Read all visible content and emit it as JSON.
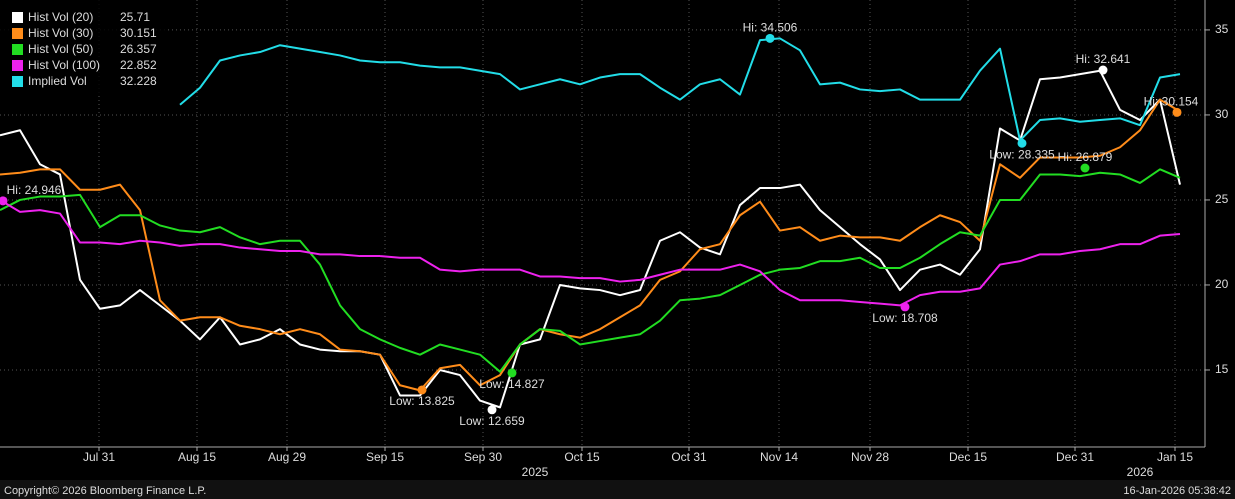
{
  "chart_data": {
    "type": "line",
    "xlim": [
      0,
      60.25
    ],
    "ylim": [
      10.47,
      36.76
    ],
    "yticks": [
      15,
      20,
      25,
      30,
      35
    ],
    "xticks": [
      {
        "value": 4.95,
        "label": "Jul 31"
      },
      {
        "value": 9.85,
        "label": "Aug 15"
      },
      {
        "value": 14.35,
        "label": "Aug 29"
      },
      {
        "value": 19.25,
        "label": "Sep 15"
      },
      {
        "value": 24.15,
        "label": "Sep 30"
      },
      {
        "value": 29.1,
        "label": "Oct 15"
      },
      {
        "value": 34.45,
        "label": "Oct 31"
      },
      {
        "value": 38.95,
        "label": "Nov 14"
      },
      {
        "value": 43.5,
        "label": "Nov 28"
      },
      {
        "value": 48.4,
        "label": "Dec 15"
      },
      {
        "value": 53.75,
        "label": "Dec 31"
      },
      {
        "value": 58.75,
        "label": "Jan 15"
      }
    ],
    "year_ticks": [
      {
        "value": 26.75,
        "label": "2025"
      },
      {
        "value": 57,
        "label": "2026"
      }
    ],
    "grid": true,
    "series": [
      {
        "name": "Hist Vol (20)",
        "last": 25.71,
        "color": "#ffffff",
        "values": [
          28.8,
          29.1,
          27.1,
          26.5,
          20.3,
          18.6,
          18.8,
          19.7,
          18.8,
          17.9,
          16.8,
          18.1,
          16.5,
          16.8,
          17.4,
          16.5,
          16.2,
          16.1,
          16.1,
          15.9,
          13.5,
          13.5,
          15.0,
          14.7,
          13.2,
          12.8,
          16.5,
          16.8,
          20.0,
          19.8,
          19.7,
          19.4,
          19.7,
          22.6,
          23.1,
          22.2,
          21.8,
          24.7,
          25.7,
          25.7,
          25.9,
          24.4,
          23.4,
          22.4,
          21.5,
          19.7,
          20.9,
          21.2,
          20.6,
          22.1,
          29.2,
          28.5,
          32.1,
          32.2,
          32.4,
          32.6,
          30.3,
          29.7,
          30.9,
          25.9
        ]
      },
      {
        "name": "Hist Vol (30)",
        "last": 30.151,
        "color": "#ff8c1a",
        "values": [
          26.5,
          26.6,
          26.8,
          26.8,
          25.6,
          25.6,
          25.9,
          24.4,
          19.1,
          17.9,
          18.1,
          18.1,
          17.6,
          17.4,
          17.1,
          17.4,
          17.1,
          16.2,
          16.1,
          15.9,
          14.1,
          13.8,
          15.1,
          15.3,
          14.1,
          14.7,
          16.5,
          17.4,
          17.1,
          16.9,
          17.4,
          18.1,
          18.8,
          20.3,
          20.8,
          22.1,
          22.4,
          24.1,
          24.9,
          23.2,
          23.4,
          22.6,
          22.9,
          22.8,
          22.8,
          22.6,
          23.4,
          24.1,
          23.7,
          22.6,
          27.1,
          26.3,
          27.5,
          27.5,
          27.5,
          27.6,
          28.1,
          29.1,
          30.9,
          30.2
        ]
      },
      {
        "name": "Hist Vol (50)",
        "last": 26.357,
        "color": "#22dd22",
        "values": [
          24.4,
          25.0,
          25.2,
          25.2,
          25.3,
          23.4,
          24.1,
          24.1,
          23.5,
          23.2,
          23.1,
          23.4,
          22.8,
          22.4,
          22.6,
          22.6,
          21.2,
          18.8,
          17.4,
          16.8,
          16.3,
          15.9,
          16.5,
          16.2,
          15.9,
          14.9,
          16.5,
          17.4,
          17.3,
          16.5,
          16.7,
          16.9,
          17.1,
          17.9,
          19.1,
          19.2,
          19.4,
          20.0,
          20.6,
          20.9,
          21.0,
          21.4,
          21.4,
          21.6,
          21.0,
          21.0,
          21.6,
          22.4,
          23.1,
          22.9,
          25.0,
          25.0,
          26.5,
          26.5,
          26.4,
          26.6,
          26.5,
          26.0,
          26.8,
          26.3
        ]
      },
      {
        "name": "Hist Vol (100)",
        "last": 22.852,
        "color": "#ee22ee",
        "values": [
          25.0,
          24.3,
          24.4,
          24.2,
          22.5,
          22.5,
          22.4,
          22.6,
          22.5,
          22.3,
          22.4,
          22.4,
          22.2,
          22.1,
          22.0,
          22.0,
          21.8,
          21.8,
          21.7,
          21.7,
          21.6,
          21.6,
          20.9,
          20.8,
          20.9,
          20.9,
          20.9,
          20.5,
          20.5,
          20.4,
          20.4,
          20.2,
          20.3,
          20.6,
          20.9,
          20.9,
          20.9,
          21.2,
          20.8,
          19.7,
          19.1,
          19.1,
          19.1,
          19.0,
          18.9,
          18.8,
          19.4,
          19.6,
          19.6,
          19.8,
          21.2,
          21.4,
          21.8,
          21.8,
          22.0,
          22.1,
          22.4,
          22.4,
          22.9,
          23.0
        ]
      },
      {
        "name": "Implied Vol",
        "last": 32.228,
        "color": "#22dde8",
        "values": [
          null,
          null,
          null,
          null,
          null,
          null,
          null,
          null,
          null,
          30.6,
          31.6,
          33.2,
          33.5,
          33.7,
          34.1,
          33.9,
          33.7,
          33.5,
          33.2,
          33.1,
          33.1,
          32.9,
          32.8,
          32.8,
          32.6,
          32.4,
          31.5,
          31.8,
          32.1,
          31.8,
          32.2,
          32.4,
          32.4,
          31.6,
          30.9,
          31.8,
          32.1,
          31.2,
          34.4,
          34.5,
          33.8,
          31.8,
          31.9,
          31.5,
          31.4,
          31.5,
          30.9,
          30.9,
          30.9,
          32.6,
          33.9,
          28.5,
          29.7,
          29.8,
          29.6,
          29.7,
          29.8,
          29.4,
          32.2,
          32.4
        ]
      }
    ],
    "annotations": [
      {
        "text": "Hi: 34.506",
        "x": 38.5,
        "value": 34.506,
        "color": "#22dde8",
        "kind": "hi"
      },
      {
        "text": "Hi: 32.641",
        "x": 55.15,
        "value": 32.641,
        "color": "#ffffff",
        "kind": "hi"
      },
      {
        "text": "Hi: 30.154",
        "x": 58.85,
        "value": 30.154,
        "color": "#ff8c1a",
        "kind": "hi"
      },
      {
        "text": "Low: 28.335",
        "x": 51.1,
        "value": 28.335,
        "color": "#22dde8",
        "kind": "low"
      },
      {
        "text": "Hi: 26.879",
        "x": 54.25,
        "value": 26.879,
        "color": "#22dd22",
        "kind": "hi"
      },
      {
        "text": "Hi: 24.946",
        "x": 0.15,
        "value": 24.946,
        "color": "#ee22ee",
        "kind": "hi"
      },
      {
        "text": "Low: 18.708",
        "x": 45.25,
        "value": 18.708,
        "color": "#ee22ee",
        "kind": "low"
      },
      {
        "text": "Low: 14.827",
        "x": 25.6,
        "value": 14.827,
        "color": "#22dd22",
        "kind": "low"
      },
      {
        "text": "Low: 13.825",
        "x": 21.1,
        "value": 13.825,
        "color": "#ff8c1a",
        "kind": "low"
      },
      {
        "text": "Low: 12.659",
        "x": 24.6,
        "value": 12.659,
        "color": "#ffffff",
        "kind": "low"
      }
    ],
    "footer_left": "Copyright© 2026 Bloomberg Finance L.P.",
    "footer_right": "16-Jan-2026 05:38:42"
  }
}
